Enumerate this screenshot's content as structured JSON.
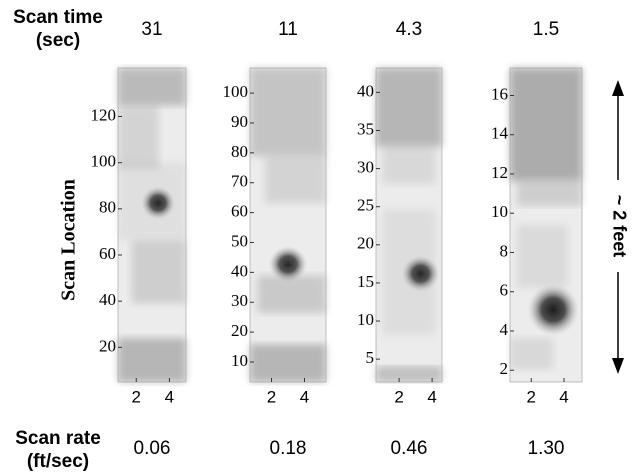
{
  "scan_time_label": [
    "Scan time",
    "(sec)"
  ],
  "scan_rate_label": [
    "Scan rate",
    "(ft/sec)"
  ],
  "y_label": "Scan Location",
  "annotation": "~ 2 feet",
  "chart_data": [
    {
      "type": "heatmap",
      "scan_time": "31",
      "scan_rate": "0.06",
      "xlim": [
        0.9,
        5
      ],
      "xticks": [
        2,
        4
      ],
      "ylim": [
        5,
        141
      ],
      "yticks": [
        20,
        40,
        60,
        80,
        100,
        120
      ]
    },
    {
      "type": "heatmap",
      "scan_time": "11",
      "scan_rate": "0.18",
      "xlim": [
        0.7,
        5.3
      ],
      "xticks": [
        2,
        4
      ],
      "ylim": [
        3.3,
        108.4
      ],
      "yticks": [
        10,
        20,
        30,
        40,
        50,
        60,
        70,
        80,
        90,
        100
      ]
    },
    {
      "type": "heatmap",
      "scan_time": "4.3",
      "scan_rate": "0.46",
      "xlim": [
        0.6,
        4.6
      ],
      "xticks": [
        2,
        4
      ],
      "ylim": [
        2,
        43.2
      ],
      "yticks": [
        5,
        10,
        15,
        20,
        25,
        30,
        35,
        40
      ]
    },
    {
      "type": "heatmap",
      "scan_time": "1.5",
      "scan_rate": "1.30",
      "xlim": [
        0.7,
        5.1
      ],
      "xticks": [
        2,
        4
      ],
      "ylim": [
        1.4,
        17.4
      ],
      "yticks": [
        2,
        4,
        6,
        8,
        10,
        12,
        14,
        16
      ]
    }
  ]
}
